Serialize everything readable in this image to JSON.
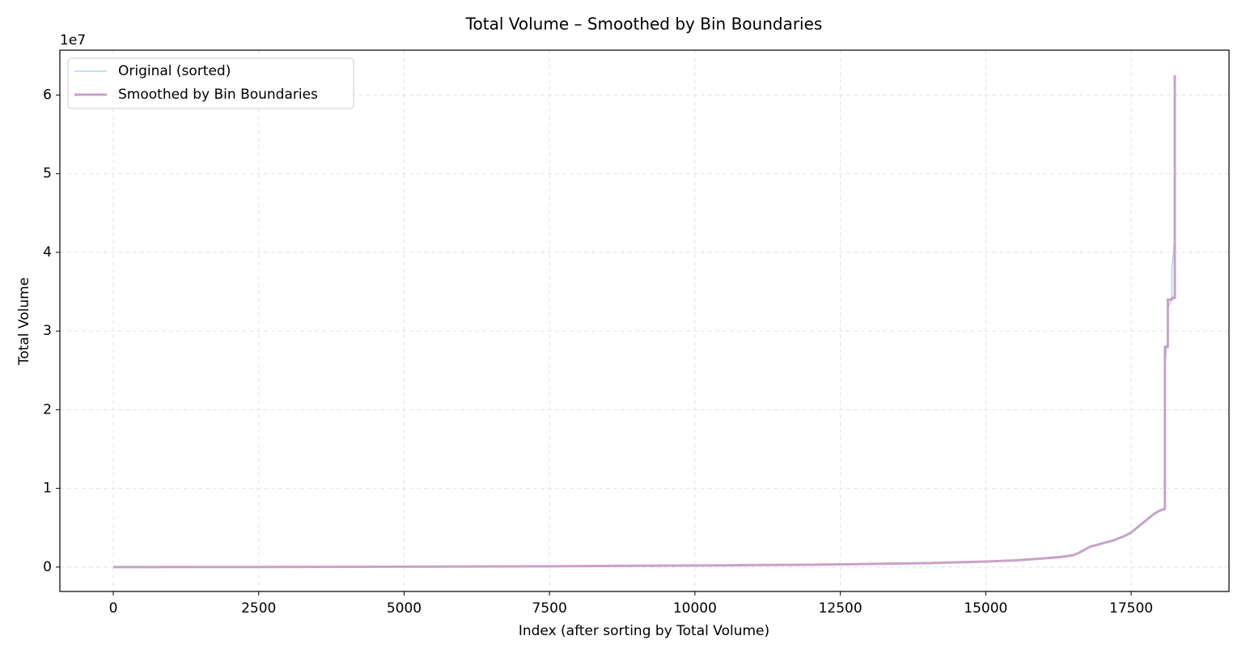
{
  "chart_data": {
    "type": "line",
    "title": "Total Volume – Smoothed by Bin Boundaries",
    "x_label": "Index (after sorting by Total Volume)",
    "y_label": "Total Volume",
    "y_offset_label": "1e7",
    "x": [
      0,
      2500,
      5000,
      7500,
      10000,
      11000,
      12000,
      12500,
      13000,
      14000,
      15000,
      15500,
      16000,
      16300,
      16500,
      16600,
      16700,
      16800,
      16900,
      17000,
      17100,
      17200,
      17300,
      17400,
      17500,
      17600,
      17700,
      17800,
      17900,
      18000,
      18080,
      18080,
      18130,
      18130,
      18200,
      18200,
      18250,
      18250
    ],
    "series": [
      {
        "name": "Original (sorted)",
        "color": "#add8e6",
        "width": 1.5,
        "values": [
          0,
          0.001,
          0.005,
          0.01,
          0.02,
          0.025,
          0.03,
          0.035,
          0.04,
          0.05,
          0.07,
          0.085,
          0.11,
          0.13,
          0.15,
          0.18,
          0.22,
          0.26,
          0.28,
          0.3,
          0.32,
          0.34,
          0.37,
          0.4,
          0.44,
          0.5,
          0.56,
          0.62,
          0.68,
          0.72,
          0.75,
          2.6,
          2.9,
          3.3,
          3.4,
          3.8,
          4.2,
          6.25
        ]
      },
      {
        "name": "Smoothed by Bin Boundaries",
        "color": "#c8a2c8",
        "width": 3,
        "values": [
          0,
          0.001,
          0.005,
          0.01,
          0.02,
          0.025,
          0.03,
          0.035,
          0.04,
          0.05,
          0.07,
          0.085,
          0.11,
          0.13,
          0.15,
          0.18,
          0.22,
          0.26,
          0.28,
          0.3,
          0.32,
          0.34,
          0.37,
          0.4,
          0.44,
          0.5,
          0.56,
          0.62,
          0.68,
          0.72,
          0.74,
          2.8,
          2.8,
          3.4,
          3.4,
          3.42,
          3.42,
          6.25
        ]
      }
    ],
    "xlim": [
      -918,
      19182
    ],
    "ylim": [
      -0.31,
      6.57
    ],
    "xticks": [
      0,
      2500,
      5000,
      7500,
      10000,
      12500,
      15000,
      17500
    ],
    "yticks": [
      0,
      1,
      2,
      3,
      4,
      5,
      6
    ],
    "grid": true,
    "legend": "upper-left"
  }
}
